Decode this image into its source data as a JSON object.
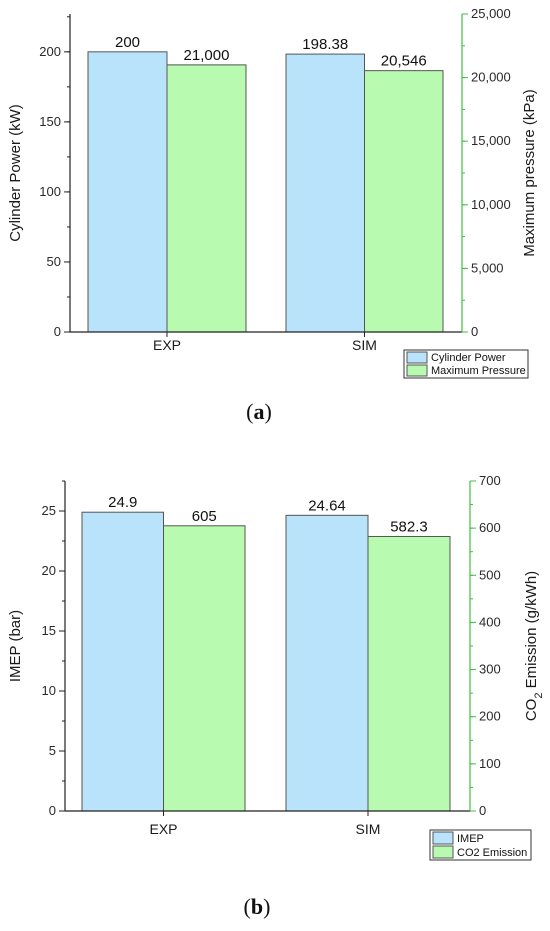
{
  "colors": {
    "left_series": "#b9e3fa",
    "right_series": "#b8fbb0",
    "bar_stroke": "#555555",
    "right_axis": "#3fbf3f",
    "left_axis": "#222222"
  },
  "chart_data": [
    {
      "type": "bar",
      "panel_label_paren_open": "(",
      "panel_label": "a",
      "panel_label_paren_close": ")",
      "categories": [
        "EXP",
        "SIM"
      ],
      "ylabel": "Cylinder Power (kW)",
      "y2label": "Maximum pressure (kPa)",
      "ylim": [
        0,
        227
      ],
      "y2lim": [
        0,
        25000
      ],
      "yticks": [
        0,
        50,
        100,
        150,
        200
      ],
      "y2ticks": [
        0,
        5000,
        10000,
        15000,
        20000,
        25000
      ],
      "y2tick_labels": [
        "0",
        "5,000",
        "10,000",
        "15,000",
        "20,000",
        "25,000"
      ],
      "series": [
        {
          "name": "Cylinder Power",
          "axis": "left",
          "values": [
            200,
            198.38
          ],
          "labels": [
            "200",
            "198.38"
          ]
        },
        {
          "name": "Maximum Pressure",
          "axis": "right",
          "values": [
            21000,
            20546
          ],
          "labels": [
            "21,000",
            "20,546"
          ]
        }
      ],
      "legend": "bottom-right"
    },
    {
      "type": "bar",
      "panel_label_paren_open": "(",
      "panel_label": "b",
      "panel_label_paren_close": ")",
      "categories": [
        "EXP",
        "SIM"
      ],
      "ylabel": "IMEP (bar)",
      "y2label": "CO2 Emission (g/kWh)",
      "ylim": [
        0,
        27.5
      ],
      "y2lim": [
        0,
        700
      ],
      "yticks": [
        0,
        5,
        10,
        15,
        20,
        25
      ],
      "y2ticks": [
        0,
        100,
        200,
        300,
        400,
        500,
        600,
        700
      ],
      "y2tick_labels": [
        "0",
        "100",
        "200",
        "300",
        "400",
        "500",
        "600",
        "700"
      ],
      "series": [
        {
          "name": "IMEP",
          "axis": "left",
          "values": [
            24.9,
            24.64
          ],
          "labels": [
            "24.9",
            "24.64"
          ]
        },
        {
          "name": "CO2 Emission",
          "axis": "right",
          "values": [
            605,
            582.3
          ],
          "labels": [
            "605",
            "582.3"
          ]
        }
      ],
      "legend": "bottom-right"
    }
  ]
}
